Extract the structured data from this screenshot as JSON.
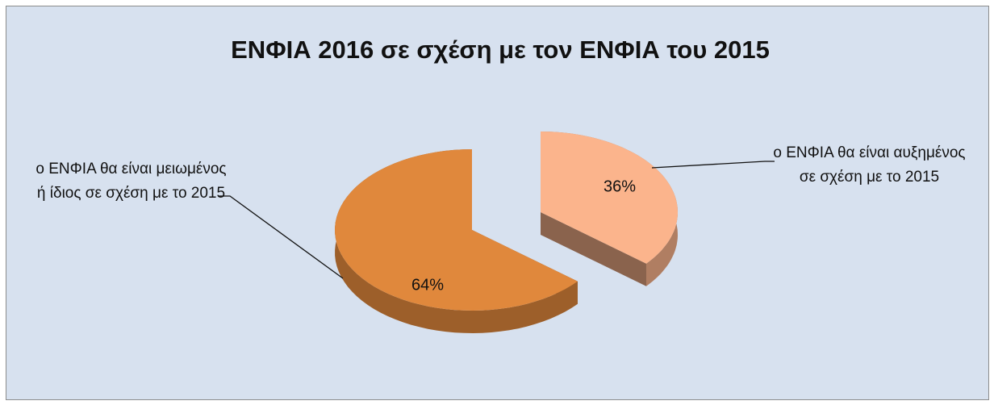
{
  "chart_data": {
    "type": "pie3d",
    "title": "ΕΝΦΙΑ 2016 σε σχέση με τον ΕΝΦΙΑ του 2015",
    "categories": [
      "ο ΕΝΦΙΑ θα είναι μειωμένος ή ίδιος σε σχέση με το 2015",
      "ο ΕΝΦΙΑ θα είναι αυξημένος σε σχέση με το 2015"
    ],
    "values": [
      64,
      36
    ],
    "value_labels": [
      "64%",
      "36%"
    ],
    "colors": [
      "#e0883c",
      "#fbb48c"
    ]
  }
}
